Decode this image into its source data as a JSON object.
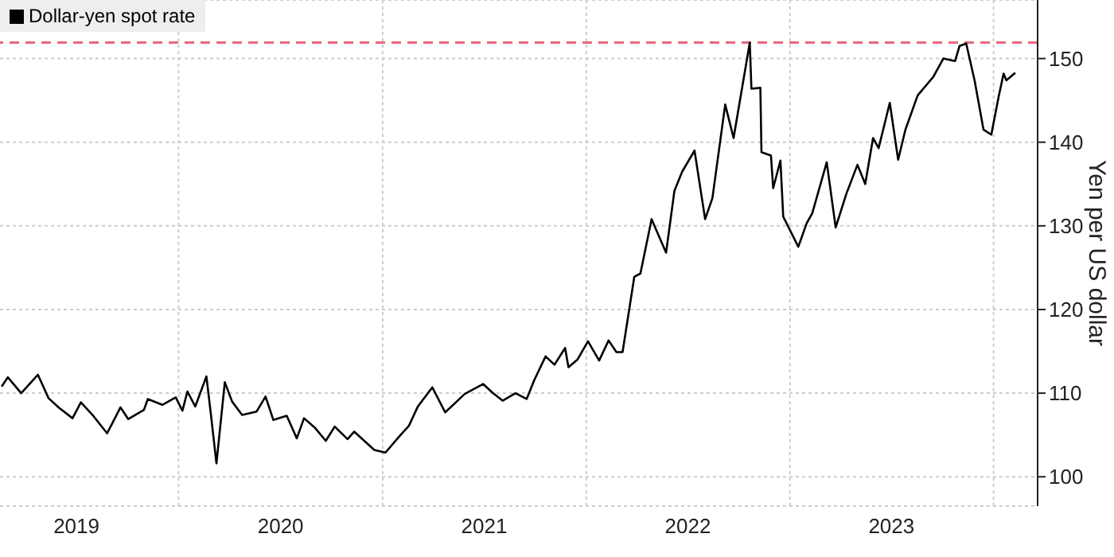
{
  "chart_data": {
    "type": "line",
    "ylabel": "Yen per US dollar",
    "legend": "top left",
    "grid": true,
    "marker": "none",
    "line_style": "solid",
    "xlim": [
      "2019-02-15",
      "2024-03-20"
    ],
    "xticks": [
      {
        "value": "2019-07-02",
        "label": "2019"
      },
      {
        "value": "2020-01-01",
        "label": null
      },
      {
        "value": "2020-07-02",
        "label": "2020"
      },
      {
        "value": "2021-01-01",
        "label": null
      },
      {
        "value": "2021-07-02",
        "label": "2021"
      },
      {
        "value": "2022-01-01",
        "label": null
      },
      {
        "value": "2022-07-02",
        "label": "2022"
      },
      {
        "value": "2023-01-01",
        "label": null
      },
      {
        "value": "2023-07-02",
        "label": "2023"
      },
      {
        "value": "2024-01-01",
        "label": null
      }
    ],
    "ylim": [
      96.5,
      157
    ],
    "yticks": [
      100,
      110,
      120,
      130,
      140,
      150
    ],
    "ref_lines": [
      {
        "axis": "y",
        "value": 151.9,
        "label": null,
        "color": "#e8677f",
        "line_style": "dashed"
      }
    ],
    "x": [
      "2019-02-18",
      "2019-03-01",
      "2019-03-25",
      "2019-04-24",
      "2019-05-13",
      "2019-05-31",
      "2019-06-25",
      "2019-07-10",
      "2019-08-01",
      "2019-08-26",
      "2019-09-19",
      "2019-10-03",
      "2019-10-31",
      "2019-11-07",
      "2019-12-03",
      "2019-12-27",
      "2020-01-08",
      "2020-01-17",
      "2020-01-31",
      "2020-02-20",
      "2020-02-28",
      "2020-03-09",
      "2020-03-24",
      "2020-04-06",
      "2020-04-24",
      "2020-05-20",
      "2020-06-05",
      "2020-06-19",
      "2020-07-13",
      "2020-07-31",
      "2020-08-13",
      "2020-09-01",
      "2020-09-21",
      "2020-10-07",
      "2020-10-30",
      "2020-11-11",
      "2020-12-17",
      "2021-01-06",
      "2021-01-29",
      "2021-02-17",
      "2021-03-05",
      "2021-03-31",
      "2021-04-23",
      "2021-05-28",
      "2021-06-30",
      "2021-07-16",
      "2021-08-04",
      "2021-08-27",
      "2021-09-16",
      "2021-09-30",
      "2021-10-20",
      "2021-11-05",
      "2021-11-24",
      "2021-11-30",
      "2021-12-16",
      "2022-01-04",
      "2022-01-24",
      "2022-02-10",
      "2022-02-24",
      "2022-03-07",
      "2022-03-28",
      "2022-04-08",
      "2022-04-28",
      "2022-05-24",
      "2022-06-08",
      "2022-06-22",
      "2022-07-14",
      "2022-08-02",
      "2022-08-15",
      "2022-09-07",
      "2022-09-22",
      "2022-10-21",
      "2022-10-24",
      "2022-11-09",
      "2022-11-11",
      "2022-11-28",
      "2022-12-02",
      "2022-12-15",
      "2022-12-20",
      "2023-01-16",
      "2023-01-31",
      "2023-02-10",
      "2023-03-08",
      "2023-03-24",
      "2023-04-12",
      "2023-05-02",
      "2023-05-16",
      "2023-05-30",
      "2023-06-09",
      "2023-06-29",
      "2023-07-14",
      "2023-07-27",
      "2023-08-18",
      "2023-09-15",
      "2023-10-03",
      "2023-10-24",
      "2023-11-01",
      "2023-11-13",
      "2023-11-28",
      "2023-12-14",
      "2023-12-28",
      "2024-01-10",
      "2024-01-19",
      "2024-01-24",
      "2024-02-09"
    ],
    "series": [
      {
        "name": "Dollar-yen spot rate",
        "color": "#000000",
        "values": [
          110.8,
          111.9,
          110.0,
          112.2,
          109.4,
          108.3,
          107.0,
          108.9,
          107.3,
          105.2,
          108.3,
          106.9,
          108.0,
          109.3,
          108.6,
          109.5,
          107.9,
          110.2,
          108.4,
          112.0,
          107.5,
          101.6,
          111.3,
          109.0,
          107.4,
          107.8,
          109.6,
          106.8,
          107.3,
          104.6,
          107.0,
          105.9,
          104.3,
          106.0,
          104.5,
          105.4,
          103.2,
          102.9,
          104.7,
          106.1,
          108.4,
          110.7,
          107.7,
          109.9,
          111.1,
          110.1,
          109.1,
          110.0,
          109.3,
          111.6,
          114.4,
          113.4,
          115.4,
          113.1,
          114.0,
          116.2,
          113.9,
          116.3,
          114.9,
          114.9,
          123.9,
          124.3,
          130.8,
          126.8,
          134.2,
          136.5,
          139.0,
          130.8,
          133.3,
          144.5,
          140.5,
          151.9,
          146.4,
          146.5,
          138.8,
          138.4,
          134.5,
          137.8,
          131.1,
          127.5,
          130.3,
          131.5,
          137.6,
          129.8,
          133.8,
          137.3,
          135.0,
          140.5,
          139.3,
          144.7,
          137.9,
          141.5,
          145.6,
          147.8,
          150.0,
          149.7,
          151.5,
          151.8,
          147.4,
          141.5,
          140.9,
          145.4,
          148.2,
          147.4,
          148.3
        ]
      }
    ]
  }
}
